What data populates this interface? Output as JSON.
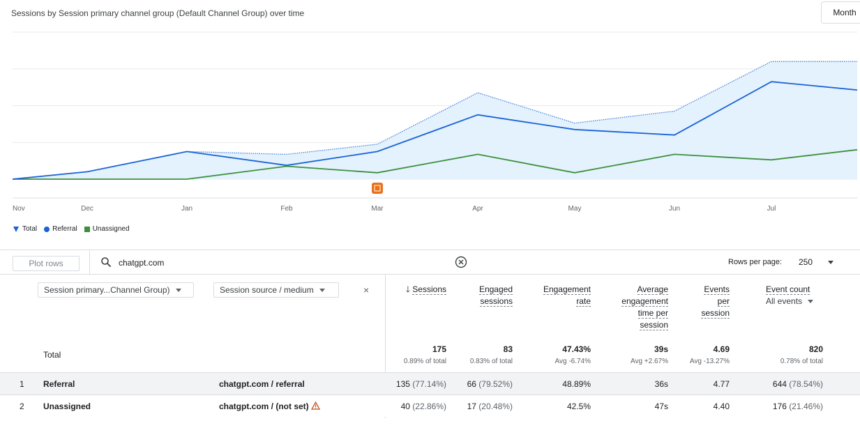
{
  "chart_title": "Sessions by Session primary channel group (Default Channel Group) over time",
  "granularity_button": "Month",
  "chart_data": {
    "type": "line",
    "categories": [
      "Nov",
      "Dec",
      "Jan",
      "Feb",
      "Mar",
      "Apr",
      "May",
      "Jun",
      "Jul",
      ""
    ],
    "series": [
      {
        "name": "Total",
        "values": [
          0,
          8,
          30,
          27,
          38,
          94,
          61,
          74,
          128,
          128
        ]
      },
      {
        "name": "Referral",
        "values": [
          0,
          8,
          30,
          15,
          30,
          70,
          54,
          48,
          106,
          97
        ]
      },
      {
        "name": "Unassigned",
        "values": [
          0,
          0,
          0,
          14,
          7,
          27,
          7,
          27,
          21,
          32
        ]
      }
    ],
    "colors": {
      "Total": "#4a7fd6",
      "Referral": "#1a62d6",
      "Unassigned": "#3d8f3d",
      "area_fill": "#e3f2fc",
      "annotation": "#e8711a"
    },
    "grid": true,
    "legend_position": "bottom-left",
    "annotation_icon": "annotation-marker-icon"
  },
  "legend": {
    "total": "Total",
    "referral": "Referral",
    "unassigned": "Unassigned"
  },
  "toolbar": {
    "plot_rows": "Plot rows",
    "search_value": "chatgpt.com",
    "rows_per_page_label": "Rows per page:",
    "rows_per_page_value": "250"
  },
  "dimensions": {
    "primary": "Session primary...Channel Group)",
    "secondary": "Session source / medium",
    "close": "×"
  },
  "metrics": {
    "sessions": {
      "l1": "Sessions",
      "total": "175",
      "sub": "0.89% of total"
    },
    "engaged": {
      "l1": "Engaged",
      "l2": "sessions",
      "total": "83",
      "sub": "0.83% of total"
    },
    "engagement_rate": {
      "l1": "Engagement",
      "l2": "rate",
      "total": "47.43%",
      "sub": "Avg -6.74%"
    },
    "avg_time": {
      "l1": "Average",
      "l2": "engagement",
      "l3": "time per",
      "l4": "session",
      "total": "39s",
      "sub": "Avg +2.67%"
    },
    "events_per": {
      "l1": "Events",
      "l2": "per",
      "l3": "session",
      "total": "4.69",
      "sub": "Avg -13.27%"
    },
    "event_count": {
      "l1": "Event count",
      "l2": "All events",
      "total": "820",
      "sub": "0.78% of total"
    }
  },
  "total_label": "Total",
  "rows": [
    {
      "index": "1",
      "channel": "Referral",
      "source": "chatgpt.com / referral",
      "warn": false,
      "sessions": "135",
      "sessions_pct": "(77.14%)",
      "engaged": "66",
      "engaged_pct": "(79.52%)",
      "rate": "48.89%",
      "time": "36s",
      "events_per": "4.77",
      "event_count": "644",
      "event_count_pct": "(78.54%)"
    },
    {
      "index": "2",
      "channel": "Unassigned",
      "source": "chatgpt.com / (not set)",
      "warn": true,
      "sessions": "40",
      "sessions_pct": "(22.86%)",
      "engaged": "17",
      "engaged_pct": "(20.48%)",
      "rate": "42.5%",
      "time": "47s",
      "events_per": "4.40",
      "event_count": "176",
      "event_count_pct": "(21.46%)"
    }
  ]
}
